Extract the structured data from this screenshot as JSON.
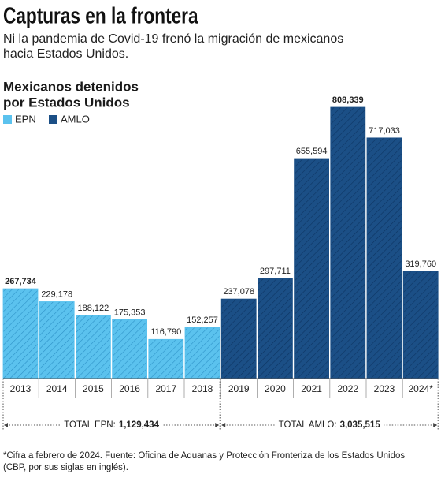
{
  "chart_data": {
    "type": "bar",
    "title": "Capturas en la frontera",
    "subtitle": [
      "Ni la pandemia de Covid-19 frenó la migración de mexicanos",
      "hacia Estados Unidos."
    ],
    "chart_title": [
      "Mexicanos detenidos",
      "por Estados Unidos"
    ],
    "categories": [
      "2013",
      "2014",
      "2015",
      "2016",
      "2017",
      "2018",
      "2019",
      "2020",
      "2021",
      "2022",
      "2023",
      "2024*"
    ],
    "series": [
      {
        "name": "EPN",
        "color": "#5bc2ee",
        "hatch": "#2e93c8",
        "values": [
          267734,
          229178,
          188122,
          175353,
          116790,
          152257,
          null,
          null,
          null,
          null,
          null,
          null
        ],
        "value_labels": [
          "267,734",
          "229,178",
          "188,122",
          "175,353",
          "116,790",
          "152,257",
          null,
          null,
          null,
          null,
          null,
          null
        ]
      },
      {
        "name": "AMLO",
        "color": "#1b4f86",
        "hatch": "#0d3563",
        "values": [
          null,
          null,
          null,
          null,
          null,
          null,
          237078,
          297711,
          655594,
          808339,
          717033,
          319760
        ],
        "value_labels": [
          null,
          null,
          null,
          null,
          null,
          null,
          "237,078",
          "297,711",
          "655,594",
          "808,339",
          "717,033",
          "319,760"
        ]
      }
    ],
    "totals": [
      {
        "label": "TOTAL EPN:",
        "value_label": "1,129,434"
      },
      {
        "label": "TOTAL AMLO:",
        "value_label": "3,035,515"
      }
    ],
    "ylim": [
      0,
      900000
    ],
    "footnote": [
      "*Cifra a febrero de 2024. Fuente: Oficina de Aduanas y Protección Fronteriza de los Estados Unidos",
      "(CBP, por sus siglas en inglés)."
    ]
  }
}
